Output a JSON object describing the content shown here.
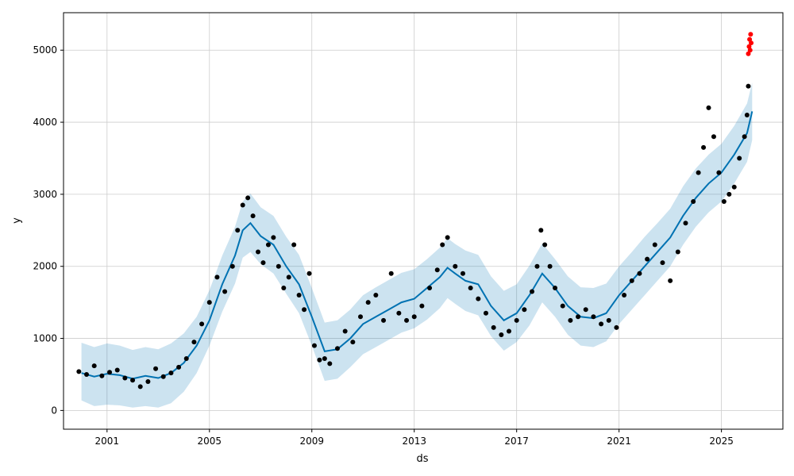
{
  "chart_data": {
    "type": "line",
    "title": "",
    "xlabel": "ds",
    "ylabel": "y",
    "xlim": [
      1999.3,
      2027.4
    ],
    "ylim": [
      -260,
      5520
    ],
    "x_ticks": [
      2001,
      2005,
      2009,
      2013,
      2017,
      2021,
      2025
    ],
    "x_tick_labels": [
      "2001",
      "2005",
      "2009",
      "2013",
      "2017",
      "2021",
      "2025"
    ],
    "y_ticks": [
      0,
      1000,
      2000,
      3000,
      4000,
      5000
    ],
    "y_tick_labels": [
      "0",
      "1000",
      "2000",
      "3000",
      "4000",
      "5000"
    ],
    "grid": true,
    "colors": {
      "forecast": "#0072b2",
      "interval": "#0072b2",
      "observed": "#000000",
      "highlight": "#ff0000"
    },
    "series": [
      {
        "kind": "forecast",
        "x": [
          2000.0,
          2000.5,
          2001.0,
          2001.5,
          2002.0,
          2002.5,
          2003.0,
          2003.5,
          2004.0,
          2004.5,
          2005.0,
          2005.5,
          2006.0,
          2006.3,
          2006.6,
          2007.0,
          2007.5,
          2008.0,
          2008.5,
          2009.0,
          2009.5,
          2010.0,
          2010.5,
          2011.0,
          2011.5,
          2012.0,
          2012.5,
          2013.0,
          2013.5,
          2014.0,
          2014.3,
          2014.6,
          2015.0,
          2015.5,
          2016.0,
          2016.5,
          2017.0,
          2017.5,
          2018.0,
          2018.5,
          2019.0,
          2019.5,
          2020.0,
          2020.5,
          2021.0,
          2021.5,
          2022.0,
          2022.5,
          2023.0,
          2023.5,
          2024.0,
          2024.5,
          2025.0,
          2025.5,
          2026.0,
          2026.2
        ],
        "y": [
          520,
          470,
          510,
          490,
          440,
          480,
          450,
          520,
          660,
          900,
          1250,
          1750,
          2150,
          2500,
          2600,
          2420,
          2300,
          2000,
          1750,
          1300,
          820,
          850,
          1000,
          1200,
          1300,
          1400,
          1500,
          1550,
          1700,
          1850,
          1980,
          1900,
          1800,
          1750,
          1450,
          1250,
          1350,
          1600,
          1900,
          1700,
          1450,
          1300,
          1280,
          1350,
          1600,
          1800,
          2000,
          2200,
          2400,
          2700,
          2950,
          3150,
          3300,
          3550,
          3850,
          4150
        ]
      },
      {
        "kind": "observed",
        "x": [
          1999.9,
          2000.2,
          2000.5,
          2000.8,
          2001.1,
          2001.4,
          2001.7,
          2002.0,
          2002.3,
          2002.6,
          2002.9,
          2003.2,
          2003.5,
          2003.8,
          2004.1,
          2004.4,
          2004.7,
          2005.0,
          2005.3,
          2005.6,
          2005.9,
          2006.1,
          2006.3,
          2006.5,
          2006.7,
          2006.9,
          2007.1,
          2007.3,
          2007.5,
          2007.7,
          2007.9,
          2008.1,
          2008.3,
          2008.5,
          2008.7,
          2008.9,
          2009.1,
          2009.3,
          2009.5,
          2009.7,
          2010.0,
          2010.3,
          2010.6,
          2010.9,
          2011.2,
          2011.5,
          2011.8,
          2012.1,
          2012.4,
          2012.7,
          2013.0,
          2013.3,
          2013.6,
          2013.9,
          2014.1,
          2014.3,
          2014.6,
          2014.9,
          2015.2,
          2015.5,
          2015.8,
          2016.1,
          2016.4,
          2016.7,
          2017.0,
          2017.3,
          2017.6,
          2017.8,
          2017.95,
          2018.1,
          2018.3,
          2018.5,
          2018.8,
          2019.1,
          2019.4,
          2019.7,
          2020.0,
          2020.3,
          2020.6,
          2020.9,
          2021.2,
          2021.5,
          2021.8,
          2022.1,
          2022.4,
          2022.7,
          2023.0,
          2023.3,
          2023.6,
          2023.9,
          2024.1,
          2024.3,
          2024.5,
          2024.7,
          2024.9,
          2025.1,
          2025.3,
          2025.5,
          2025.7,
          2025.9,
          2026.0,
          2026.05
        ],
        "y": [
          540,
          500,
          620,
          480,
          530,
          560,
          450,
          420,
          330,
          400,
          580,
          470,
          520,
          600,
          720,
          950,
          1200,
          1500,
          1850,
          1650,
          2000,
          2500,
          2850,
          2950,
          2700,
          2200,
          2050,
          2300,
          2400,
          2000,
          1700,
          1850,
          2300,
          1600,
          1400,
          1900,
          900,
          700,
          720,
          650,
          860,
          1100,
          950,
          1300,
          1500,
          1600,
          1250,
          1900,
          1350,
          1250,
          1300,
          1450,
          1700,
          1950,
          2300,
          2400,
          2000,
          1900,
          1700,
          1550,
          1350,
          1150,
          1050,
          1100,
          1250,
          1400,
          1650,
          2000,
          2500,
          2300,
          2000,
          1700,
          1450,
          1250,
          1300,
          1400,
          1300,
          1200,
          1250,
          1150,
          1600,
          1800,
          1900,
          2100,
          2300,
          2050,
          1800,
          2200,
          2600,
          2900,
          3300,
          3650,
          4200,
          3800,
          3300,
          2900,
          3000,
          3100,
          3500,
          3800,
          4100,
          4500
        ]
      },
      {
        "kind": "highlight",
        "x": [
          2026.05,
          2026.08,
          2026.1,
          2026.12,
          2026.14,
          2026.16
        ],
        "y": [
          4950,
          5050,
          5150,
          5000,
          5220,
          5100
        ]
      }
    ],
    "interval": {
      "x": [
        2000.0,
        2000.5,
        2001.0,
        2001.5,
        2002.0,
        2002.5,
        2003.0,
        2003.5,
        2004.0,
        2004.5,
        2005.0,
        2005.5,
        2006.0,
        2006.3,
        2006.6,
        2007.0,
        2007.5,
        2008.0,
        2008.5,
        2009.0,
        2009.5,
        2010.0,
        2010.5,
        2011.0,
        2011.5,
        2012.0,
        2012.5,
        2013.0,
        2013.5,
        2014.0,
        2014.3,
        2014.6,
        2015.0,
        2015.5,
        2016.0,
        2016.5,
        2017.0,
        2017.5,
        2018.0,
        2018.5,
        2019.0,
        2019.5,
        2020.0,
        2020.5,
        2021.0,
        2021.5,
        2022.0,
        2022.5,
        2023.0,
        2023.5,
        2024.0,
        2024.5,
        2025.0,
        2025.5,
        2026.0,
        2026.2
      ],
      "lower": [
        140,
        60,
        80,
        70,
        40,
        60,
        40,
        100,
        260,
        520,
        900,
        1370,
        1760,
        2120,
        2200,
        2030,
        1900,
        1620,
        1350,
        900,
        410,
        440,
        600,
        780,
        880,
        980,
        1080,
        1140,
        1260,
        1420,
        1560,
        1480,
        1380,
        1320,
        1030,
        830,
        950,
        1180,
        1500,
        1300,
        1050,
        900,
        880,
        960,
        1200,
        1400,
        1600,
        1800,
        2000,
        2300,
        2550,
        2750,
        2900,
        3150,
        3450,
        3750
      ],
      "upper": [
        940,
        880,
        930,
        900,
        840,
        880,
        850,
        930,
        1070,
        1300,
        1670,
        2150,
        2550,
        2900,
        3010,
        2820,
        2700,
        2410,
        2160,
        1700,
        1220,
        1250,
        1400,
        1600,
        1710,
        1810,
        1910,
        1960,
        2100,
        2260,
        2390,
        2310,
        2220,
        2160,
        1860,
        1660,
        1750,
        2010,
        2320,
        2100,
        1860,
        1710,
        1700,
        1760,
        2000,
        2200,
        2410,
        2600,
        2800,
        3110,
        3360,
        3550,
        3700,
        3950,
        4260,
        4550
      ]
    }
  }
}
